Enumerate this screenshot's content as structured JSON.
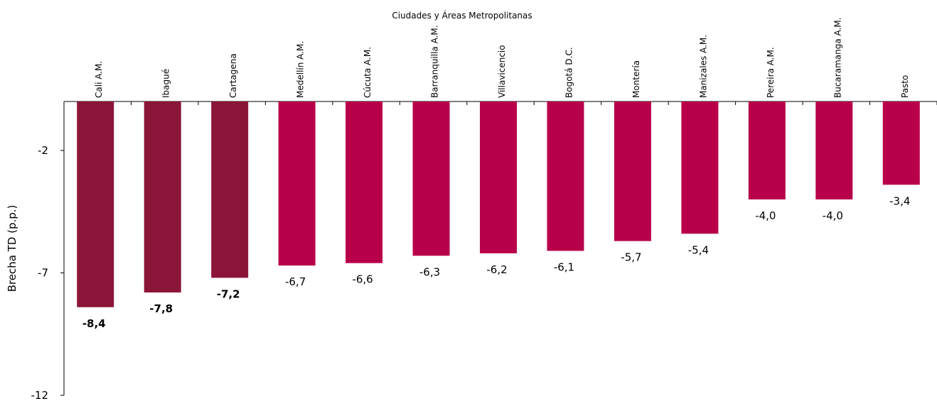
{
  "chart_data": {
    "type": "bar",
    "title": "Ciudades y  Áreas Metropolitanas",
    "y_label": "Brecha TD (p.p.)",
    "categories": [
      "Cali A.M.",
      "Ibagué",
      "Cartagena",
      "Medellín A.M.",
      "Cúcuta A.M.",
      "Barranquilla A.M.",
      "Villavicencio",
      "Bogotá D.C.",
      "Montería",
      "Manizales A.M.",
      "Pereira A.M.",
      "Bucaramanga A.M.",
      "Pasto"
    ],
    "values": [
      -8.4,
      -7.8,
      -7.2,
      -6.7,
      -6.6,
      -6.3,
      -6.2,
      -6.1,
      -5.7,
      -5.4,
      -4.0,
      -4.0,
      -3.4
    ],
    "value_labels": [
      "-8,4",
      "-7,8",
      "-7,2",
      "-6,7",
      "-6,6",
      "-6,3",
      "-6,2",
      "-6,1",
      "-5,7",
      "-5,4",
      "-4,0",
      "-4,0",
      "-3,4"
    ],
    "colors": [
      "#8b1538",
      "#8b1538",
      "#8b1538",
      "#b8004a",
      "#b8004a",
      "#b8004a",
      "#b8004a",
      "#b8004a",
      "#b8004a",
      "#b8004a",
      "#b8004a",
      "#b8004a",
      "#b8004a"
    ],
    "value_label_bold": [
      true,
      true,
      true,
      false,
      false,
      false,
      false,
      false,
      false,
      false,
      false,
      false,
      false
    ],
    "ylim": [
      -12,
      0
    ],
    "yticks": [
      -2,
      -7,
      -12
    ]
  }
}
